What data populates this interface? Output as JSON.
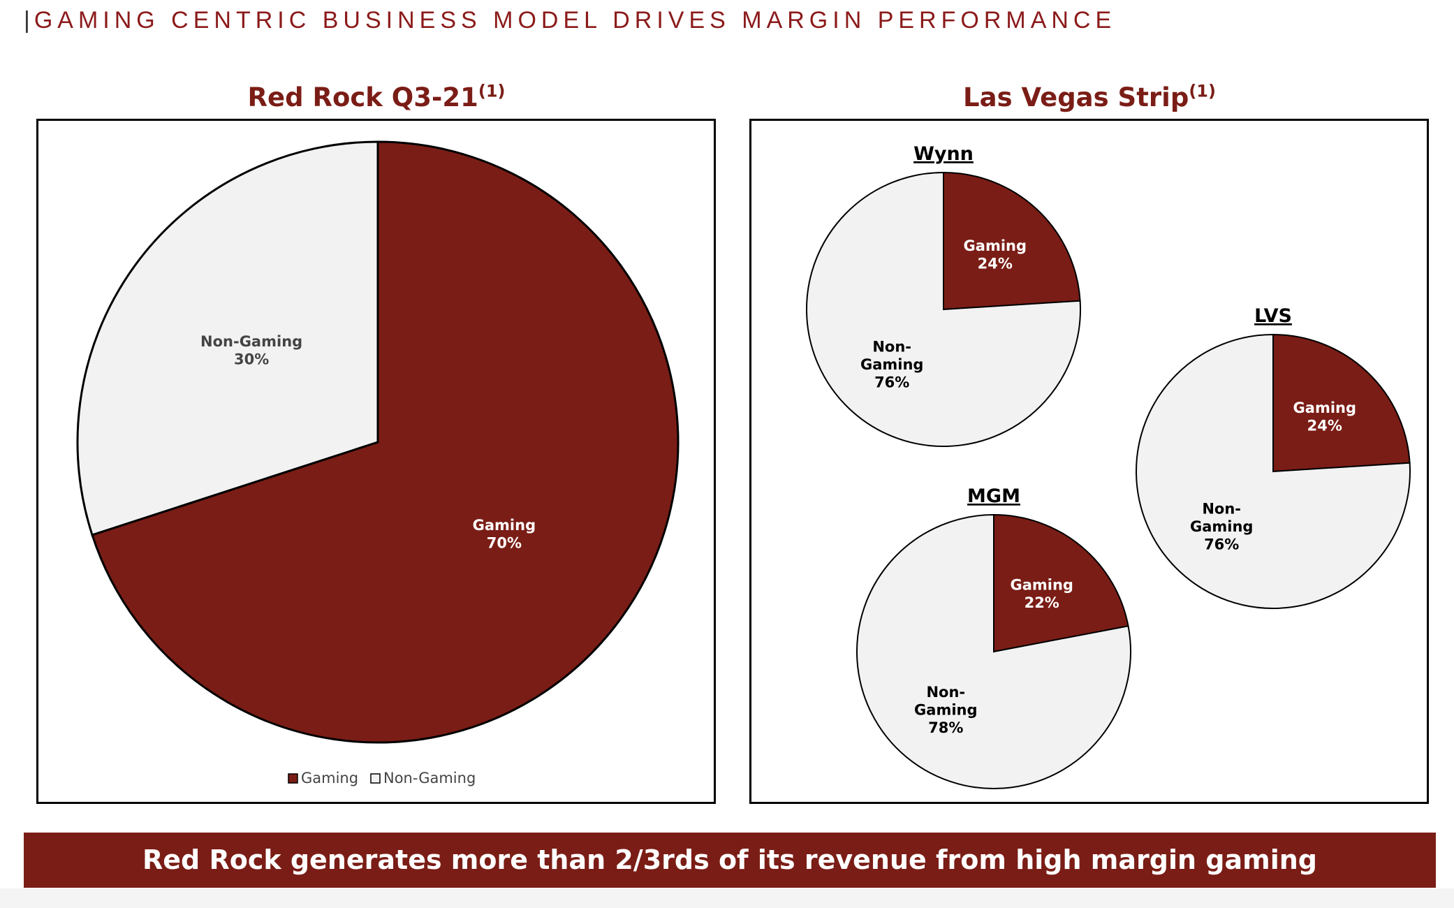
{
  "header": {
    "bar": "|",
    "title": "GAMING CENTRIC BUSINESS MODEL DRIVES MARGIN PERFORMANCE"
  },
  "left_panel": {
    "title": "Red Rock Q3-21",
    "footnote": "(1)"
  },
  "right_panel": {
    "title": "Las Vegas Strip",
    "footnote": "(1)"
  },
  "banner": {
    "text": "Red Rock generates more than 2/3rds of its revenue from high margin gaming"
  },
  "colors": {
    "gaming": "#7A1D16",
    "non_gaming": "#F2F2F2",
    "accent": "#8B1A1A"
  },
  "chart_data": [
    {
      "type": "pie",
      "title": "Red Rock Q3-21",
      "categories": [
        "Gaming",
        "Non-Gaming"
      ],
      "values": [
        70,
        30
      ],
      "labels": [
        "Gaming\n70%",
        "Non-Gaming\n30%"
      ],
      "legend": [
        "Gaming",
        "Non-Gaming"
      ],
      "legend_position": "bottom"
    },
    {
      "type": "pie",
      "title": "Wynn",
      "categories": [
        "Gaming",
        "Non-Gaming"
      ],
      "values": [
        24,
        76
      ],
      "labels": [
        "Gaming\n24%",
        "Non-\nGaming\n76%"
      ]
    },
    {
      "type": "pie",
      "title": "LVS",
      "categories": [
        "Gaming",
        "Non-Gaming"
      ],
      "values": [
        24,
        76
      ],
      "labels": [
        "Gaming\n24%",
        "Non-\nGaming\n76%"
      ]
    },
    {
      "type": "pie",
      "title": "MGM",
      "categories": [
        "Gaming",
        "Non-Gaming"
      ],
      "values": [
        22,
        78
      ],
      "labels": [
        "Gaming\n22%",
        "Non-\nGaming\n78%"
      ]
    }
  ]
}
